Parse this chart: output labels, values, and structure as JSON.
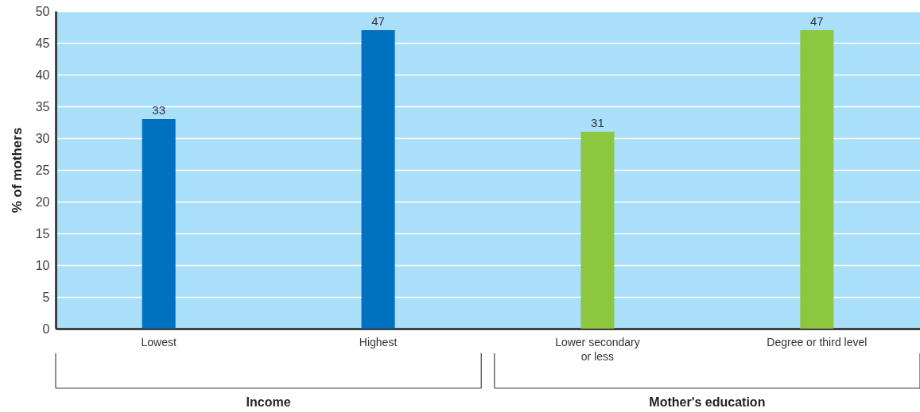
{
  "chart_data": {
    "type": "bar",
    "ylabel": "% of mothers",
    "categories": [
      "Lowest",
      "Highest",
      "Lower secondary\nor less",
      "Degree or third level"
    ],
    "values": [
      33,
      47,
      31,
      47
    ],
    "colors": [
      "#0070c0",
      "#0070c0",
      "#8dc63f",
      "#8dc63f"
    ],
    "annotations": [
      "Income",
      "Mother's education"
    ],
    "ylim": [
      0,
      50
    ],
    "yticks": [
      0,
      5,
      10,
      15,
      20,
      25,
      30,
      35,
      40,
      45,
      50
    ],
    "grid": "y",
    "data_labels": true
  }
}
